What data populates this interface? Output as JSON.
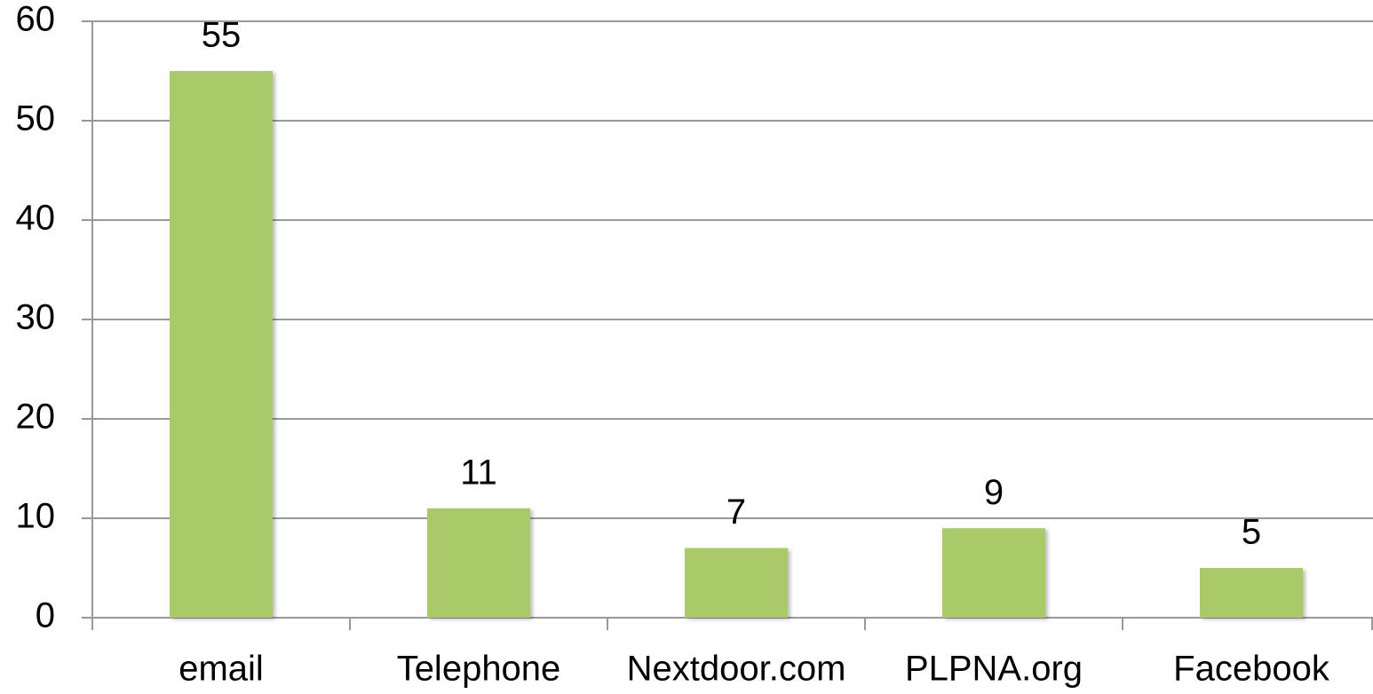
{
  "chart_data": {
    "type": "bar",
    "categories": [
      "email",
      "Telephone",
      "Nextdoor.com",
      "PLPNA.org",
      "Facebook"
    ],
    "values": [
      55,
      11,
      7,
      9,
      5
    ],
    "color": "#aac968",
    "ylim": [
      0,
      60
    ],
    "yticks": [
      0,
      10,
      20,
      30,
      40,
      50,
      60
    ],
    "grid": true
  }
}
